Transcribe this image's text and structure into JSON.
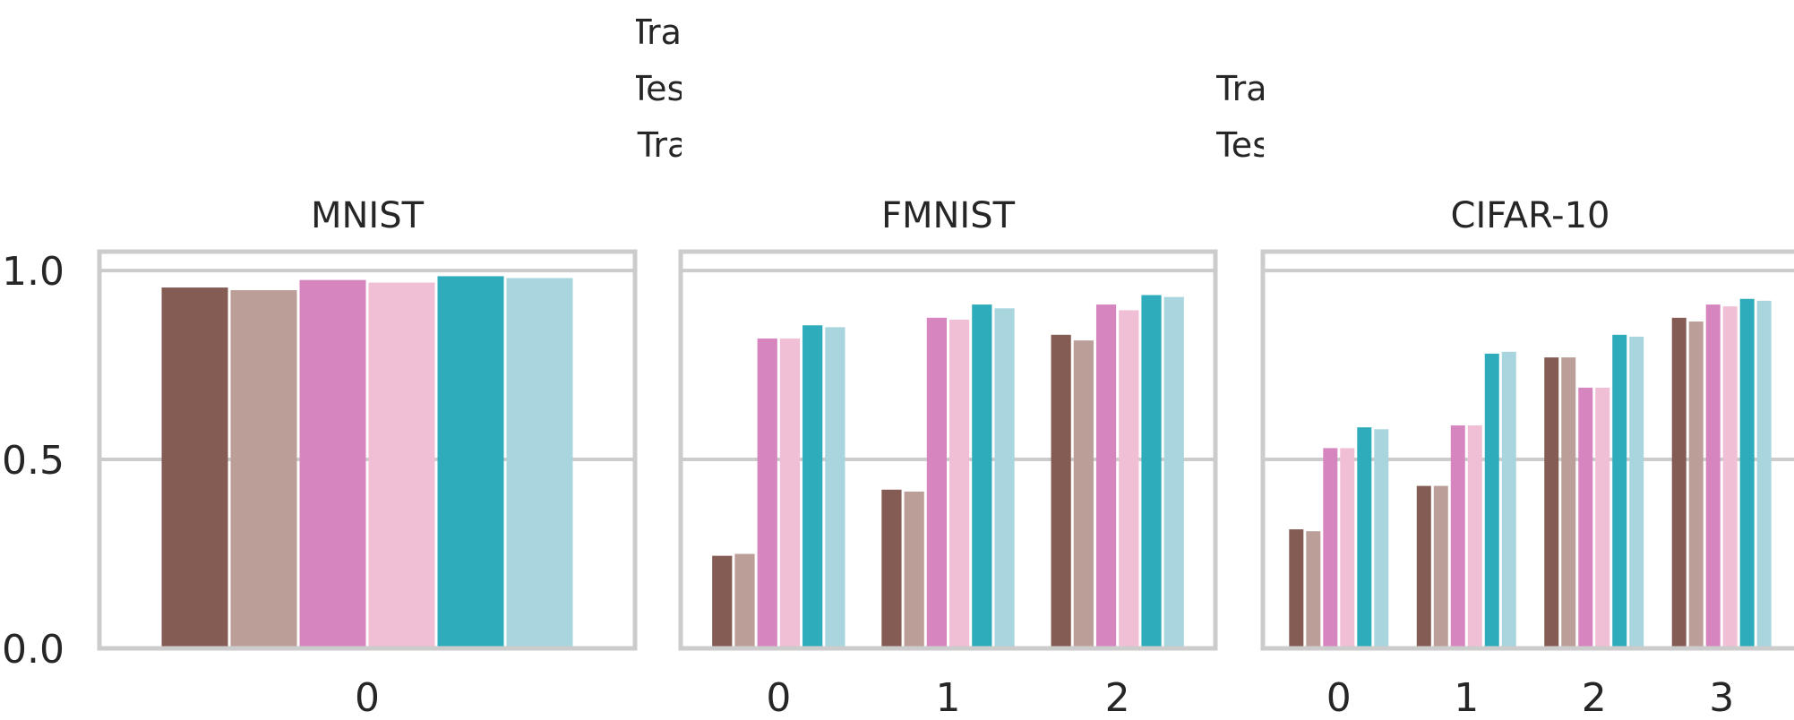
{
  "chart_data": {
    "type": "bar",
    "legend": {
      "placement": "top-center",
      "columns": 2,
      "entries": [
        {
          "name": "-TL(Train)",
          "color": "#845c53"
        },
        {
          "name": "-TL(Test)",
          "color": "#bc9e98"
        },
        {
          "name": "-SS(Train)",
          "color": "#d685bf"
        },
        {
          "name": "-SS(Test)",
          "color": "#f0bed5"
        },
        {
          "name": "DeepDebugger(Train)",
          "color": "#2eacbb"
        },
        {
          "name": "DeepDebugger(Test)",
          "color": "#a9d5de"
        }
      ]
    },
    "ylim": [
      0,
      1.05
    ],
    "yticks": [
      0.0,
      0.5,
      1.0
    ],
    "ytick_labels": [
      "0.0",
      "0.5",
      "1.0"
    ],
    "grid": "horizontal",
    "panels": [
      {
        "title": "MNIST",
        "categories": [
          "0"
        ],
        "series": [
          {
            "name": "-TL(Train)",
            "values": [
              0.955
            ]
          },
          {
            "name": "-TL(Test)",
            "values": [
              0.948
            ]
          },
          {
            "name": "-SS(Train)",
            "values": [
              0.975
            ]
          },
          {
            "name": "-SS(Test)",
            "values": [
              0.968
            ]
          },
          {
            "name": "DeepDebugger(Train)",
            "values": [
              0.985
            ]
          },
          {
            "name": "DeepDebugger(Test)",
            "values": [
              0.98
            ]
          }
        ]
      },
      {
        "title": "FMNIST",
        "categories": [
          "0",
          "1",
          "2"
        ],
        "series": [
          {
            "name": "-TL(Train)",
            "values": [
              0.245,
              0.42,
              0.83
            ]
          },
          {
            "name": "-TL(Test)",
            "values": [
              0.25,
              0.415,
              0.815
            ]
          },
          {
            "name": "-SS(Train)",
            "values": [
              0.82,
              0.875,
              0.91
            ]
          },
          {
            "name": "-SS(Test)",
            "values": [
              0.82,
              0.87,
              0.895
            ]
          },
          {
            "name": "DeepDebugger(Train)",
            "values": [
              0.855,
              0.91,
              0.935
            ]
          },
          {
            "name": "DeepDebugger(Test)",
            "values": [
              0.85,
              0.9,
              0.93
            ]
          }
        ]
      },
      {
        "title": "CIFAR-10",
        "categories": [
          "0",
          "1",
          "2",
          "3"
        ],
        "series": [
          {
            "name": "-TL(Train)",
            "values": [
              0.315,
              0.43,
              0.77,
              0.875
            ]
          },
          {
            "name": "-TL(Test)",
            "values": [
              0.31,
              0.43,
              0.77,
              0.865
            ]
          },
          {
            "name": "-SS(Train)",
            "values": [
              0.53,
              0.59,
              0.69,
              0.91
            ]
          },
          {
            "name": "-SS(Test)",
            "values": [
              0.53,
              0.59,
              0.69,
              0.905
            ]
          },
          {
            "name": "DeepDebugger(Train)",
            "values": [
              0.585,
              0.78,
              0.83,
              0.925
            ]
          },
          {
            "name": "DeepDebugger(Test)",
            "values": [
              0.58,
              0.785,
              0.825,
              0.92
            ]
          }
        ]
      }
    ]
  }
}
